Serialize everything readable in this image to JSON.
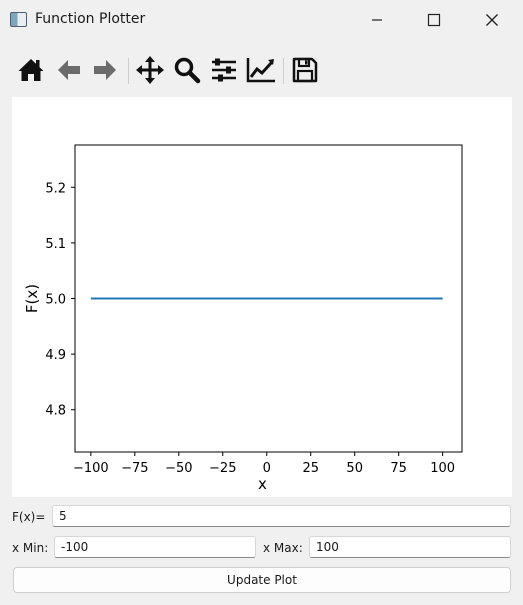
{
  "window": {
    "title": "Function Plotter"
  },
  "toolbar": {
    "buttons": [
      "home-icon",
      "back-icon",
      "forward-icon",
      "pan-icon",
      "zoom-icon",
      "configure-subplots-icon",
      "edit-axis-icon",
      "save-icon"
    ]
  },
  "chart_data": {
    "type": "line",
    "x": [
      -100,
      100
    ],
    "y": [
      5,
      5
    ],
    "xlabel": "x",
    "ylabel": "F(x)",
    "xlim": [
      -109,
      111
    ],
    "ylim": [
      4.724,
      5.276
    ],
    "xticks": [
      -100,
      -75,
      -50,
      -25,
      0,
      25,
      50,
      75,
      100
    ],
    "xtick_labels": [
      "−100",
      "−75",
      "−50",
      "−25",
      "0",
      "25",
      "50",
      "75",
      "100"
    ],
    "yticks": [
      4.8,
      4.9,
      5.0,
      5.1,
      5.2
    ],
    "ytick_labels": [
      "4.8",
      "4.9",
      "5.0",
      "5.1",
      "5.2"
    ],
    "line_color": "#1f77b4",
    "grid": false
  },
  "form": {
    "fx_label": "F(x)=",
    "fx_value": "5",
    "xmin_label": "x Min:",
    "xmin_value": "-100",
    "xmax_label": "x Max:",
    "xmax_value": "100",
    "update_button": "Update Plot"
  }
}
